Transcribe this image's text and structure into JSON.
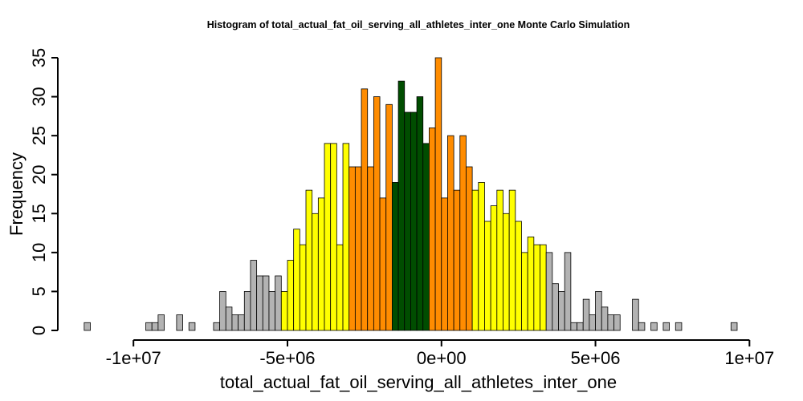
{
  "chart_data": {
    "type": "bar",
    "title": "Histogram of  total_actual_fat_oil_serving_all_athletes_inter_one  Monte Carlo Simulation",
    "xlabel": "total_actual_fat_oil_serving_all_athletes_inter_one",
    "ylabel": "Frequency",
    "x_ticks": [
      {
        "value": -10000000,
        "label": "-1e+07"
      },
      {
        "value": -5000000,
        "label": "-5e+06"
      },
      {
        "value": 0,
        "label": "0e+00"
      },
      {
        "value": 5000000,
        "label": "5e+06"
      },
      {
        "value": 10000000,
        "label": "1e+07"
      }
    ],
    "y_ticks": [
      0,
      5,
      10,
      15,
      20,
      25,
      30,
      35
    ],
    "xlim": [
      -11700000,
      10200000
    ],
    "ylim": [
      0,
      35
    ],
    "bin_start": -11600000,
    "bin_width": 200000,
    "counts": [
      1,
      0,
      0,
      0,
      0,
      0,
      0,
      0,
      0,
      0,
      1,
      1,
      2,
      0,
      0,
      2,
      0,
      1,
      0,
      0,
      0,
      1,
      5,
      3,
      2,
      2,
      5,
      9,
      7,
      7,
      5,
      7,
      5,
      9,
      13,
      11,
      18,
      15,
      17,
      24,
      24,
      11,
      24,
      21,
      21,
      31,
      21,
      30,
      17,
      29,
      19,
      32,
      28,
      28,
      30,
      24,
      26,
      35,
      17,
      25,
      18,
      25,
      21,
      18,
      19,
      14,
      16,
      18,
      15,
      18,
      14,
      10,
      12,
      11,
      11,
      10,
      6,
      5,
      10,
      1,
      1,
      4,
      2,
      5,
      3,
      2,
      2,
      0,
      0,
      4,
      1,
      0,
      1,
      0,
      1,
      0,
      1,
      0,
      0,
      0,
      0,
      0,
      0,
      0,
      0,
      1
    ],
    "colors": {
      "outer": "#b3b3b3",
      "middle": "#ffff00",
      "inner": "#ff8c00",
      "core": "#004d00",
      "stroke": "#000000"
    }
  }
}
